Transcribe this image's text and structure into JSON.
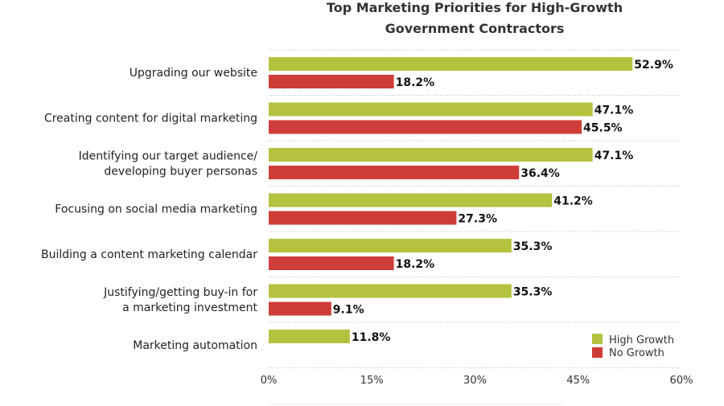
{
  "chart_data": {
    "type": "bar",
    "orientation": "horizontal",
    "title": "Top Marketing Priorities for High-Growth Government Contractors",
    "title_lines": [
      "Top Marketing Priorities for High-Growth",
      "Government Contractors"
    ],
    "categories": [
      [
        "Upgrading our website"
      ],
      [
        "Creating content for digital marketing"
      ],
      [
        "Identifying our target audience/",
        "developing buyer personas"
      ],
      [
        "Focusing on social media marketing"
      ],
      [
        "Building a content marketing calendar"
      ],
      [
        "Justifying/getting buy-in for",
        "a marketing investment"
      ],
      [
        "Marketing automation"
      ]
    ],
    "series": [
      {
        "name": "High Growth",
        "color": "#b5c23f",
        "values": [
          52.9,
          47.1,
          47.1,
          41.2,
          35.3,
          35.3,
          11.8
        ],
        "labels": [
          "52.9%",
          "47.1%",
          "47.1%",
          "41.2%",
          "35.3%",
          "35.3%",
          "11.8%"
        ]
      },
      {
        "name": "No Growth",
        "color": "#cf3d38",
        "values": [
          18.2,
          45.5,
          36.4,
          27.3,
          18.2,
          9.1,
          null
        ],
        "labels": [
          "18.2%",
          "45.5%",
          "36.4%",
          "27.3%",
          "18.2%",
          "9.1%",
          null
        ]
      }
    ],
    "xlim": [
      0,
      60
    ],
    "xticks": [
      0,
      15,
      30,
      45,
      60
    ],
    "xtick_labels": [
      "0%",
      "15%",
      "30%",
      "45%",
      "60%"
    ],
    "grid": "dotted horizontal separators between categories",
    "legend_position": "bottom-right",
    "xlabel": "",
    "ylabel": ""
  }
}
